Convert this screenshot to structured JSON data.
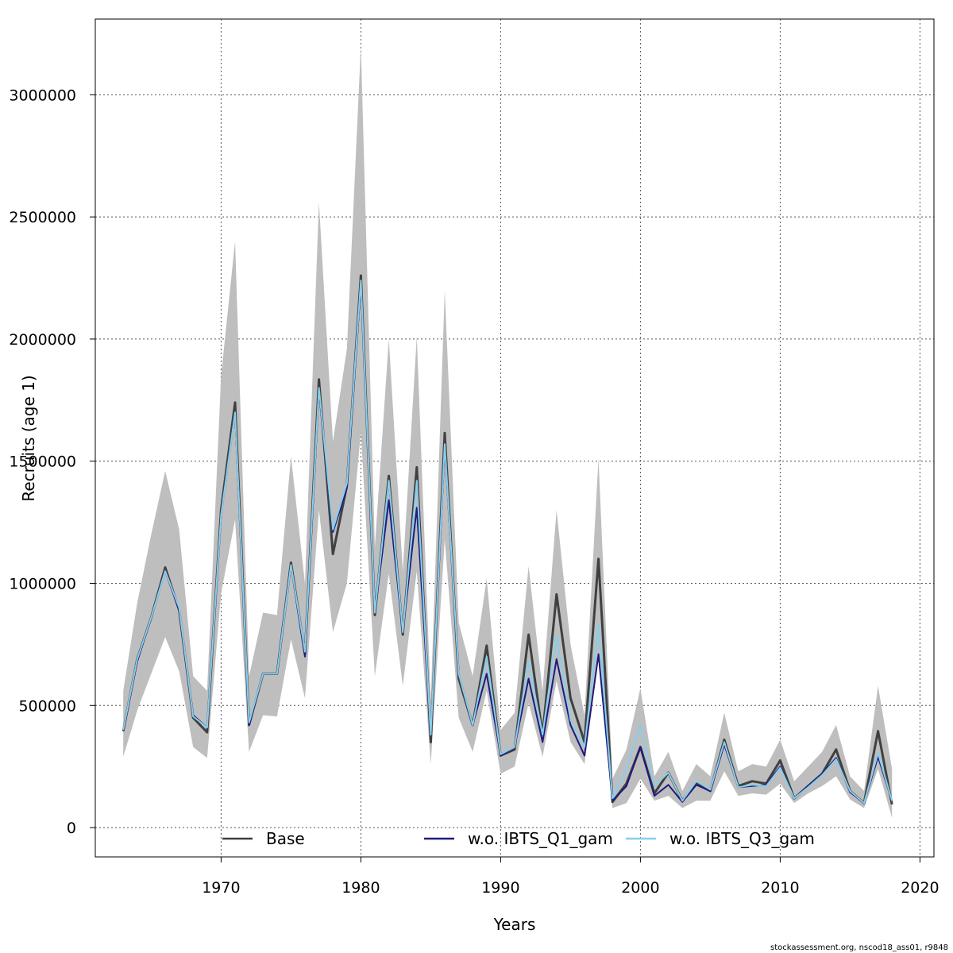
{
  "chart_data": {
    "type": "line",
    "title": "",
    "xlabel": "Years",
    "ylabel": "Recruits (age 1)",
    "xlim": [
      1961,
      2021
    ],
    "ylim": [
      -120000,
      3310000
    ],
    "grid": true,
    "legend_position": "bottom",
    "x_ticks": [
      1970,
      1980,
      1990,
      2000,
      2010,
      2020
    ],
    "y_ticks": [
      0,
      500000,
      1000000,
      1500000,
      2000000,
      2500000,
      3000000
    ],
    "x": [
      1963,
      1964,
      1965,
      1966,
      1967,
      1968,
      1969,
      1970,
      1971,
      1972,
      1973,
      1974,
      1975,
      1976,
      1977,
      1978,
      1979,
      1980,
      1981,
      1982,
      1983,
      1984,
      1985,
      1986,
      1987,
      1988,
      1989,
      1990,
      1991,
      1992,
      1993,
      1994,
      1995,
      1996,
      1997,
      1998,
      1999,
      2000,
      2001,
      2002,
      2003,
      2004,
      2005,
      2006,
      2007,
      2008,
      2009,
      2010,
      2011,
      2012,
      2013,
      2014,
      2015,
      2016,
      2017,
      2018
    ],
    "band": {
      "color": "#bebebe",
      "upper": [
        560000,
        920000,
        1200000,
        1460000,
        1220000,
        620000,
        560000,
        1850000,
        2400000,
        620000,
        880000,
        870000,
        1520000,
        1000000,
        2560000,
        1580000,
        1960000,
        3200000,
        1150000,
        2000000,
        1050000,
        2010000,
        520000,
        2200000,
        840000,
        620000,
        1020000,
        400000,
        470000,
        1070000,
        560000,
        1300000,
        750000,
        460000,
        1510000,
        200000,
        320000,
        570000,
        210000,
        310000,
        150000,
        260000,
        210000,
        470000,
        230000,
        260000,
        250000,
        360000,
        190000,
        250000,
        310000,
        420000,
        210000,
        150000,
        580000,
        240000
      ],
      "lower": [
        290000,
        480000,
        630000,
        780000,
        640000,
        330000,
        285000,
        960000,
        1260000,
        310000,
        460000,
        455000,
        770000,
        530000,
        1300000,
        800000,
        1000000,
        1620000,
        620000,
        1040000,
        580000,
        1050000,
        260000,
        1180000,
        450000,
        310000,
        560000,
        220000,
        250000,
        510000,
        290000,
        600000,
        350000,
        260000,
        690000,
        80000,
        100000,
        200000,
        110000,
        130000,
        80000,
        110000,
        110000,
        230000,
        130000,
        140000,
        135000,
        180000,
        100000,
        140000,
        170000,
        210000,
        115000,
        80000,
        240000,
        40000
      ]
    },
    "series": [
      {
        "name": "Base",
        "color": "#404040",
        "width": 3,
        "values": [
          395000,
          690000,
          860000,
          1065000,
          890000,
          450000,
          390000,
          1300000,
          1740000,
          420000,
          630000,
          630000,
          1085000,
          710000,
          1835000,
          1120000,
          1400000,
          2260000,
          870000,
          1440000,
          790000,
          1475000,
          350000,
          1615000,
          610000,
          420000,
          745000,
          295000,
          320000,
          790000,
          380000,
          955000,
          530000,
          350000,
          1100000,
          105000,
          180000,
          330000,
          140000,
          225000,
          110000,
          180000,
          150000,
          360000,
          170000,
          190000,
          180000,
          275000,
          120000,
          170000,
          220000,
          320000,
          150000,
          100000,
          395000,
          95000
        ]
      },
      {
        "name": "w.o. IBTS_Q1_gam",
        "color": "#1f1a80",
        "width": 2,
        "values": [
          400000,
          680000,
          860000,
          1050000,
          890000,
          460000,
          410000,
          1280000,
          1700000,
          420000,
          630000,
          630000,
          1075000,
          700000,
          1790000,
          1210000,
          1390000,
          2230000,
          880000,
          1340000,
          800000,
          1310000,
          380000,
          1560000,
          630000,
          420000,
          630000,
          295000,
          330000,
          610000,
          350000,
          690000,
          420000,
          295000,
          710000,
          110000,
          170000,
          330000,
          130000,
          175000,
          105000,
          175000,
          150000,
          340000,
          165000,
          170000,
          175000,
          250000,
          120000,
          170000,
          220000,
          285000,
          145000,
          100000,
          290000,
          110000
        ]
      },
      {
        "name": "w.o. IBTS_Q3_gam",
        "color": "#87ceeb",
        "width": 2,
        "values": [
          400000,
          690000,
          860000,
          1050000,
          900000,
          455000,
          410000,
          1280000,
          1700000,
          430000,
          630000,
          630000,
          1075000,
          720000,
          1800000,
          1220000,
          1410000,
          2240000,
          880000,
          1420000,
          800000,
          1420000,
          380000,
          1570000,
          630000,
          420000,
          700000,
          300000,
          330000,
          680000,
          380000,
          790000,
          440000,
          330000,
          830000,
          120000,
          240000,
          420000,
          170000,
          225000,
          110000,
          190000,
          155000,
          350000,
          165000,
          175000,
          170000,
          245000,
          120000,
          165000,
          215000,
          280000,
          150000,
          100000,
          305000,
          110000
        ]
      }
    ]
  },
  "footer": {
    "credit": "stockassessment.org, nscod18_ass01, r9848"
  }
}
